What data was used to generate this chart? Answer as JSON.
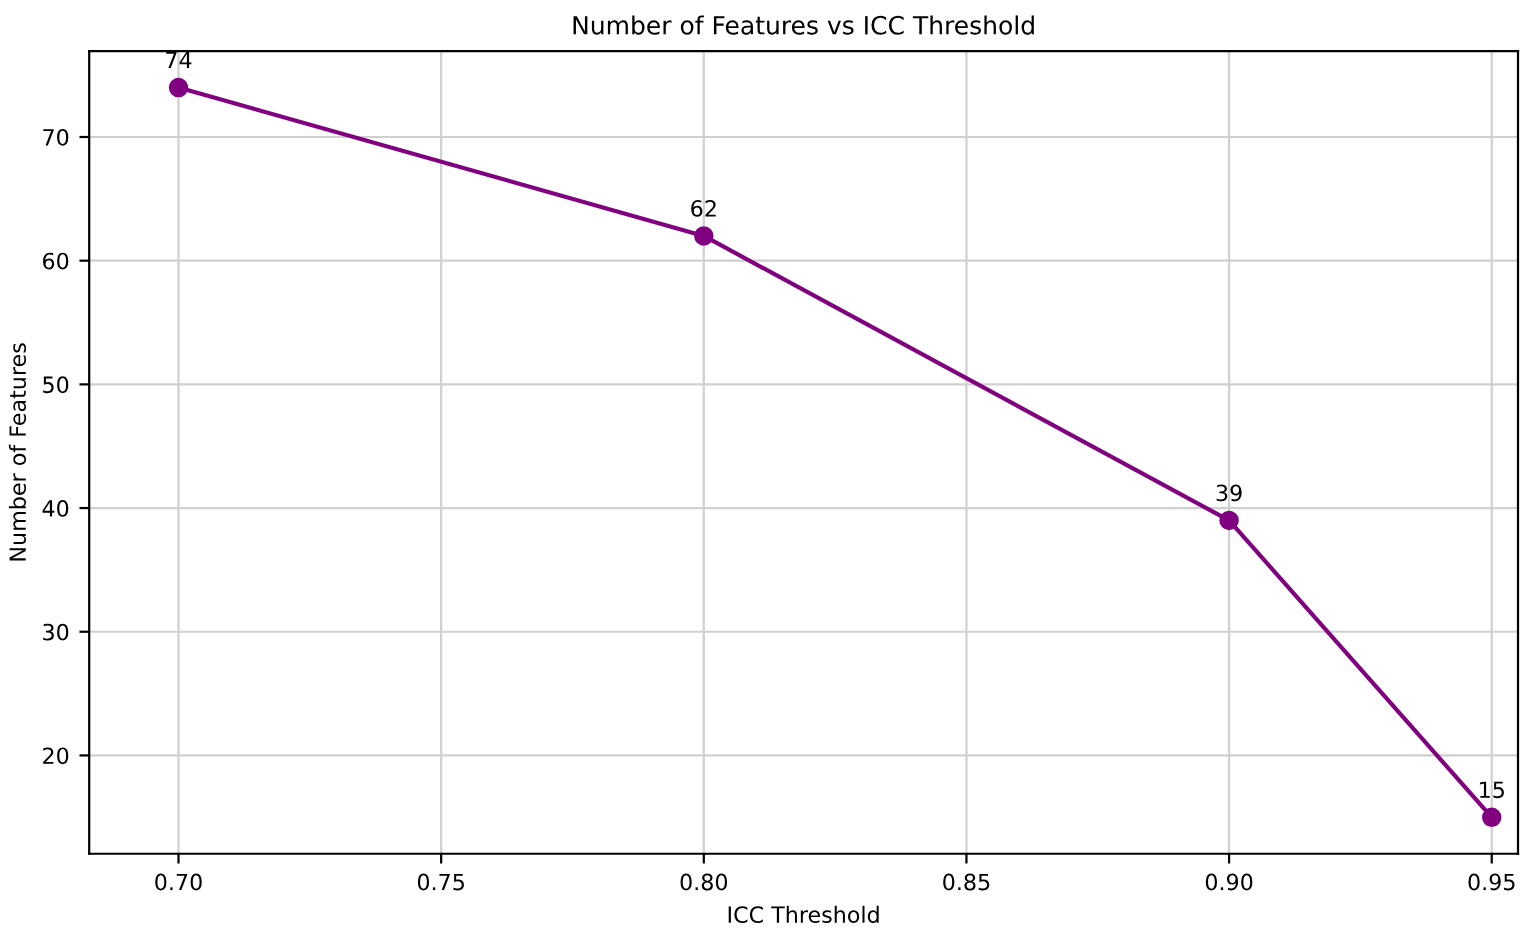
{
  "chart_data": {
    "type": "line",
    "title": "Number of Features vs ICC Threshold",
    "xlabel": "ICC Threshold",
    "ylabel": "Number of Features",
    "x": [
      0.7,
      0.8,
      0.9,
      0.95
    ],
    "series": [
      {
        "color": "#800080",
        "values": [
          74,
          62,
          39,
          15
        ]
      }
    ],
    "xlim": [
      0.683,
      0.955
    ],
    "ylim": [
      12.05,
      76.95
    ],
    "xticks": [
      {
        "value": 0.7,
        "label": "0.70"
      },
      {
        "value": 0.75,
        "label": "0.75"
      },
      {
        "value": 0.8,
        "label": "0.80"
      },
      {
        "value": 0.85,
        "label": "0.85"
      },
      {
        "value": 0.9,
        "label": "0.90"
      },
      {
        "value": 0.95,
        "label": "0.95"
      }
    ],
    "yticks": [
      20,
      30,
      40,
      50,
      60,
      70
    ],
    "grid": true,
    "marker": "circle",
    "line_style": "solid",
    "data_labels": true
  }
}
